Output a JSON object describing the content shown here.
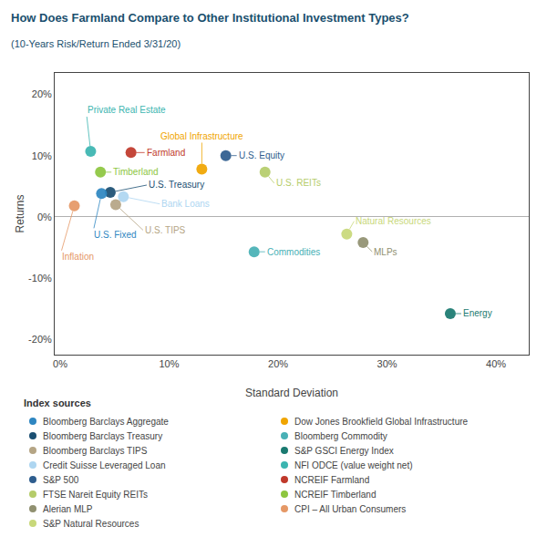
{
  "chart_data": {
    "type": "scatter",
    "title": "How Does Farmland Compare to Other Institutional Investment Types?",
    "subtitle": "(10-Years Risk/Return Ended 3/31/20)",
    "xlabel": "Standard Deviation",
    "ylabel": "Returns",
    "xlim": [
      -0.005,
      0.43
    ],
    "ylim": [
      -0.225,
      0.235
    ],
    "xticks": [
      {
        "value": 0.0,
        "label": "0%"
      },
      {
        "value": 0.1,
        "label": "10%"
      },
      {
        "value": 0.2,
        "label": "20%"
      },
      {
        "value": 0.3,
        "label": "30%"
      },
      {
        "value": 0.4,
        "label": "40%"
      }
    ],
    "yticks": [
      {
        "value": -0.2,
        "label": "-20%"
      },
      {
        "value": -0.1,
        "label": "-10%"
      },
      {
        "value": 0.0,
        "label": "0%"
      },
      {
        "value": 0.1,
        "label": "10%"
      },
      {
        "value": 0.2,
        "label": "20%"
      }
    ],
    "grid": false,
    "series": [
      {
        "name": "Private Real Estate",
        "color": "#3bb5b0",
        "x": [
          0.028
        ],
        "values": [
          0.107
        ]
      },
      {
        "name": "Farmland",
        "color": "#c0392b",
        "x": [
          0.065
        ],
        "values": [
          0.105
        ]
      },
      {
        "name": "Timberland",
        "color": "#8dc63f",
        "x": [
          0.037
        ],
        "values": [
          0.073
        ]
      },
      {
        "name": "U.S. Treasury",
        "color": "#1b4f72",
        "x": [
          0.046
        ],
        "values": [
          0.04
        ]
      },
      {
        "name": "Bank Loans",
        "color": "#aed6f1",
        "x": [
          0.058
        ],
        "values": [
          0.033
        ]
      },
      {
        "name": "U.S. TIPS",
        "color": "#b5a585",
        "x": [
          0.051
        ],
        "values": [
          0.02
        ]
      },
      {
        "name": "U.S. Fixed",
        "color": "#2e86c1",
        "x": [
          0.038
        ],
        "values": [
          0.038
        ]
      },
      {
        "name": "Inflation",
        "color": "#e59866",
        "x": [
          0.013
        ],
        "values": [
          0.018
        ]
      },
      {
        "name": "Global Infrastructure",
        "color": "#f0a500",
        "x": [
          0.13
        ],
        "values": [
          0.078
        ]
      },
      {
        "name": "U.S. Equity",
        "color": "#2e5d8e",
        "x": [
          0.152
        ],
        "values": [
          0.1
        ]
      },
      {
        "name": "U.S. REITs",
        "color": "#b5cc6a",
        "x": [
          0.188
        ],
        "values": [
          0.073
        ]
      },
      {
        "name": "Commodities",
        "color": "#48b0b5",
        "x": [
          0.178
        ],
        "values": [
          -0.057
        ]
      },
      {
        "name": "Natural Resources",
        "color": "#c8d87a",
        "x": [
          0.263
        ],
        "values": [
          -0.028
        ]
      },
      {
        "name": "MLPs",
        "color": "#909070",
        "x": [
          0.278
        ],
        "values": [
          -0.042
        ]
      },
      {
        "name": "Energy",
        "color": "#1a7a70",
        "x": [
          0.358
        ],
        "values": [
          -0.158
        ]
      }
    ],
    "index_sources": {
      "title": "Index sources",
      "columns": [
        [
          {
            "name": "Bloomberg Barclays Aggregate",
            "color": "#2e86c1"
          },
          {
            "name": "Bloomberg Barclays Treasury",
            "color": "#1b4f72"
          },
          {
            "name": "Bloomberg Barclays TIPS",
            "color": "#b5a585"
          },
          {
            "name": "Credit Suisse Leveraged Loan",
            "color": "#aed6f1"
          },
          {
            "name": "S&P 500",
            "color": "#2e5d8e"
          },
          {
            "name": "FTSE Nareit Equity REITs",
            "color": "#b5cc6a"
          },
          {
            "name": "Alerian MLP",
            "color": "#909070"
          },
          {
            "name": "S&P Natural Resources",
            "color": "#c8d87a"
          }
        ],
        [
          {
            "name": "Dow Jones Brookfield Global Infrastructure",
            "color": "#f0a500"
          },
          {
            "name": "Bloomberg Commodity",
            "color": "#48b0b5"
          },
          {
            "name": "S&P GSCI Energy Index",
            "color": "#1a7a70"
          },
          {
            "name": "NFI ODCE (value weight net)",
            "color": "#3bb5b0"
          },
          {
            "name": "NCREIF Farmland",
            "color": "#c0392b"
          },
          {
            "name": "NCREIF Timberland",
            "color": "#8dc63f"
          },
          {
            "name": "CPI – All Urban Consumers",
            "color": "#e59866"
          }
        ]
      ]
    }
  }
}
